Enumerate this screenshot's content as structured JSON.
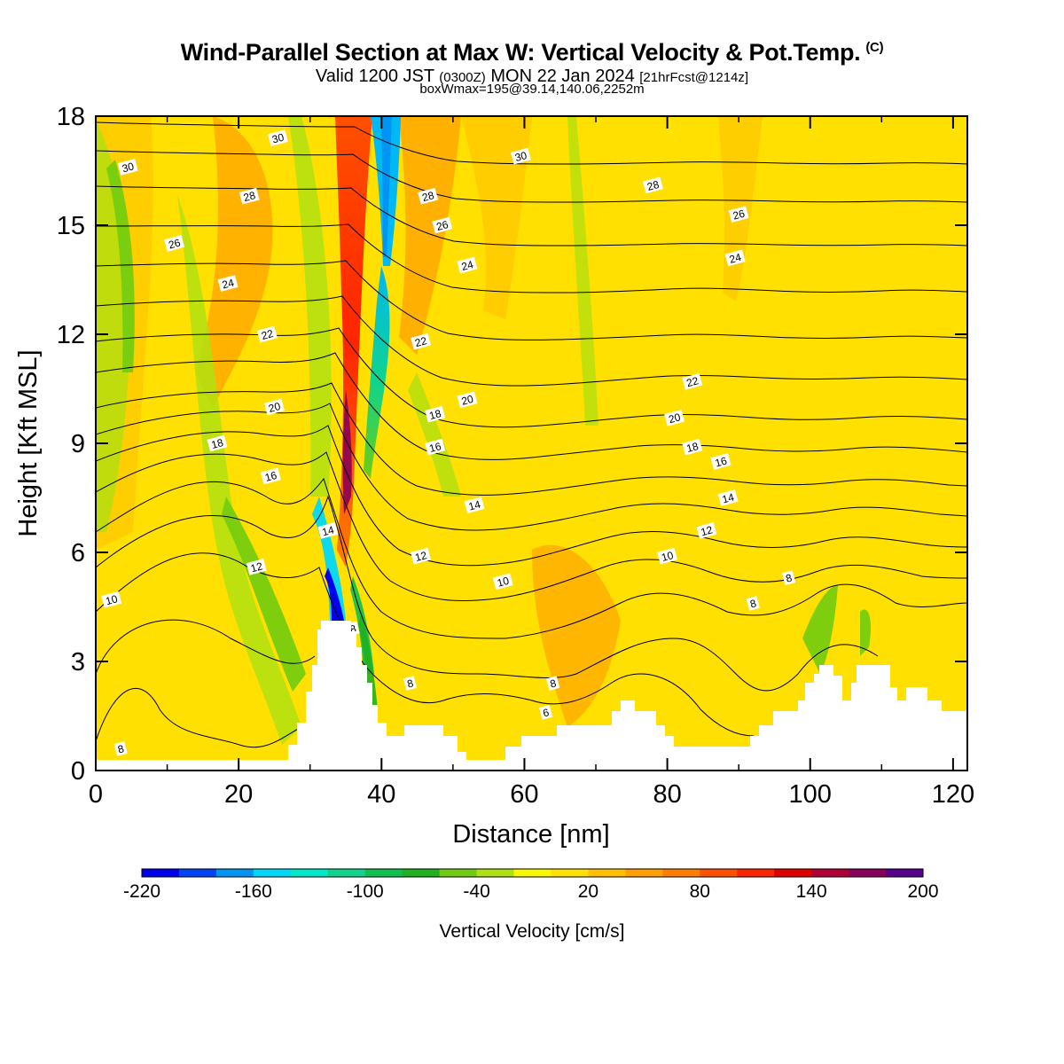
{
  "header": {
    "title": "Wind-Parallel Section at Max W: Vertical Velocity & Pot.Temp.",
    "copyright_mark": "(C)",
    "valid_prefix": "Valid 1200 JST",
    "valid_utc": "(0300Z)",
    "valid_date": "MON 22 Jan 2024",
    "forecast_info": "[21hrFcst@1214z]",
    "boxwmax": "boxWmax=195@39.14,140.06,2252m"
  },
  "chart_data": {
    "type": "heatmap",
    "xlabel": "Distance [nm]",
    "ylabel": "Height [Kft MSL]",
    "xlim": [
      0,
      122
    ],
    "ylim": [
      0,
      18
    ],
    "x_ticks": [
      "0",
      "20",
      "40",
      "60",
      "80",
      "100",
      "120"
    ],
    "y_ticks": [
      "0",
      "3",
      "6",
      "9",
      "12",
      "15",
      "18"
    ],
    "colorbar": {
      "label": "Vertical Velocity [cm/s]",
      "tick_labels": [
        "-220",
        "-160",
        "-100",
        "-40",
        "20",
        "80",
        "140",
        "200"
      ],
      "colors": [
        "#0000ee",
        "#0044f4",
        "#0095f2",
        "#00d8f8",
        "#00e8c8",
        "#10d48c",
        "#10c050",
        "#20b020",
        "#70cc10",
        "#b0e010",
        "#f8f800",
        "#ffe000",
        "#ffc000",
        "#ffa000",
        "#ff7e00",
        "#ff5000",
        "#ff2400",
        "#e00000",
        "#b00038",
        "#880058",
        "#56008c"
      ]
    },
    "theta_contours": [
      {
        "label": "6",
        "x": 63,
        "y": 1.6
      },
      {
        "label": "8",
        "x": 44,
        "y": 2.4
      },
      {
        "label": "8",
        "x": 64,
        "y": 2.4
      },
      {
        "label": "8",
        "x": 36,
        "y": 3.9
      },
      {
        "label": "8",
        "x": 92,
        "y": 4.6
      },
      {
        "label": "8",
        "x": 97,
        "y": 5.3
      },
      {
        "label": "8",
        "x": 3.5,
        "y": 0.6
      },
      {
        "label": "10",
        "x": 2.2,
        "y": 4.7
      },
      {
        "label": "10",
        "x": 57,
        "y": 5.2
      },
      {
        "label": "10",
        "x": 80,
        "y": 5.9
      },
      {
        "label": "12",
        "x": 22.5,
        "y": 5.6
      },
      {
        "label": "12",
        "x": 45.5,
        "y": 5.9
      },
      {
        "label": "12",
        "x": 85.5,
        "y": 6.6
      },
      {
        "label": "14",
        "x": 32.5,
        "y": 6.6
      },
      {
        "label": "14",
        "x": 53,
        "y": 7.3
      },
      {
        "label": "14",
        "x": 88.5,
        "y": 7.5
      },
      {
        "label": "16",
        "x": 24.5,
        "y": 8.1
      },
      {
        "label": "16",
        "x": 47.5,
        "y": 8.9
      },
      {
        "label": "16",
        "x": 87.5,
        "y": 8.5
      },
      {
        "label": "18",
        "x": 17,
        "y": 9.0
      },
      {
        "label": "18",
        "x": 47.5,
        "y": 9.8
      },
      {
        "label": "18",
        "x": 83.5,
        "y": 8.9
      },
      {
        "label": "20",
        "x": 25,
        "y": 10.0
      },
      {
        "label": "20",
        "x": 52,
        "y": 10.2
      },
      {
        "label": "20",
        "x": 81,
        "y": 9.7
      },
      {
        "label": "22",
        "x": 24,
        "y": 12.0
      },
      {
        "label": "22",
        "x": 45.5,
        "y": 11.8
      },
      {
        "label": "22",
        "x": 83.5,
        "y": 10.7
      },
      {
        "label": "24",
        "x": 18.5,
        "y": 13.4
      },
      {
        "label": "24",
        "x": 52,
        "y": 13.9
      },
      {
        "label": "24",
        "x": 89.5,
        "y": 14.1
      },
      {
        "label": "26",
        "x": 11,
        "y": 14.5
      },
      {
        "label": "26",
        "x": 48.5,
        "y": 15.0
      },
      {
        "label": "26",
        "x": 90,
        "y": 15.3
      },
      {
        "label": "28",
        "x": 21.5,
        "y": 15.8
      },
      {
        "label": "28",
        "x": 46.5,
        "y": 15.8
      },
      {
        "label": "28",
        "x": 78,
        "y": 16.1
      },
      {
        "label": "30",
        "x": 4.5,
        "y": 16.6
      },
      {
        "label": "30",
        "x": 25.5,
        "y": 17.4
      },
      {
        "label": "30",
        "x": 59.5,
        "y": 16.9
      }
    ]
  }
}
